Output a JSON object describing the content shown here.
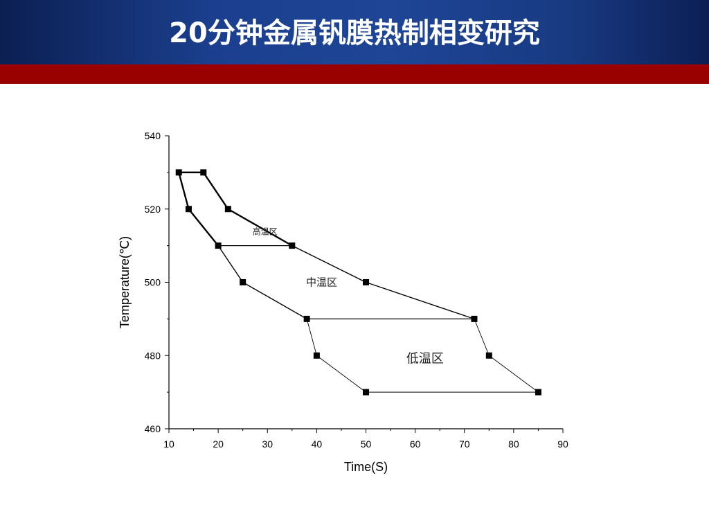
{
  "page": {
    "title": "20分钟金属钒膜热制相变研究"
  },
  "colors": {
    "header_blue": "#1b3f8e",
    "red_bar": "#990000",
    "line": "#000000"
  },
  "chart_data": {
    "type": "line",
    "title": "",
    "xlabel": "Time(S)",
    "ylabel": "Temperature(℃)",
    "xlim": [
      10,
      90
    ],
    "ylim": [
      460,
      540
    ],
    "xticks": [
      10,
      20,
      30,
      40,
      50,
      60,
      70,
      80,
      90
    ],
    "yticks": [
      460,
      480,
      500,
      520,
      540
    ],
    "grid": false,
    "series": [
      {
        "x": [
          12,
          14,
          20,
          25,
          38,
          40,
          50
        ],
        "y": [
          530,
          520,
          510,
          500,
          490,
          480,
          470
        ]
      },
      {
        "x": [
          17,
          22,
          35,
          50,
          72,
          75,
          85
        ],
        "y": [
          530,
          520,
          510,
          500,
          490,
          480,
          470
        ]
      }
    ],
    "connectors": [
      {
        "from": [
          12,
          530
        ],
        "to": [
          17,
          530
        ]
      },
      {
        "from": [
          20,
          510
        ],
        "to": [
          35,
          510
        ]
      },
      {
        "from": [
          38,
          490
        ],
        "to": [
          72,
          490
        ]
      },
      {
        "from": [
          50,
          470
        ],
        "to": [
          85,
          470
        ]
      }
    ],
    "annotations": [
      {
        "text": "高温区",
        "x": 29.5,
        "y": 514
      },
      {
        "text": "中温区",
        "x": 41,
        "y": 500
      },
      {
        "text": "低温区",
        "x": 62,
        "y": 479
      }
    ]
  }
}
